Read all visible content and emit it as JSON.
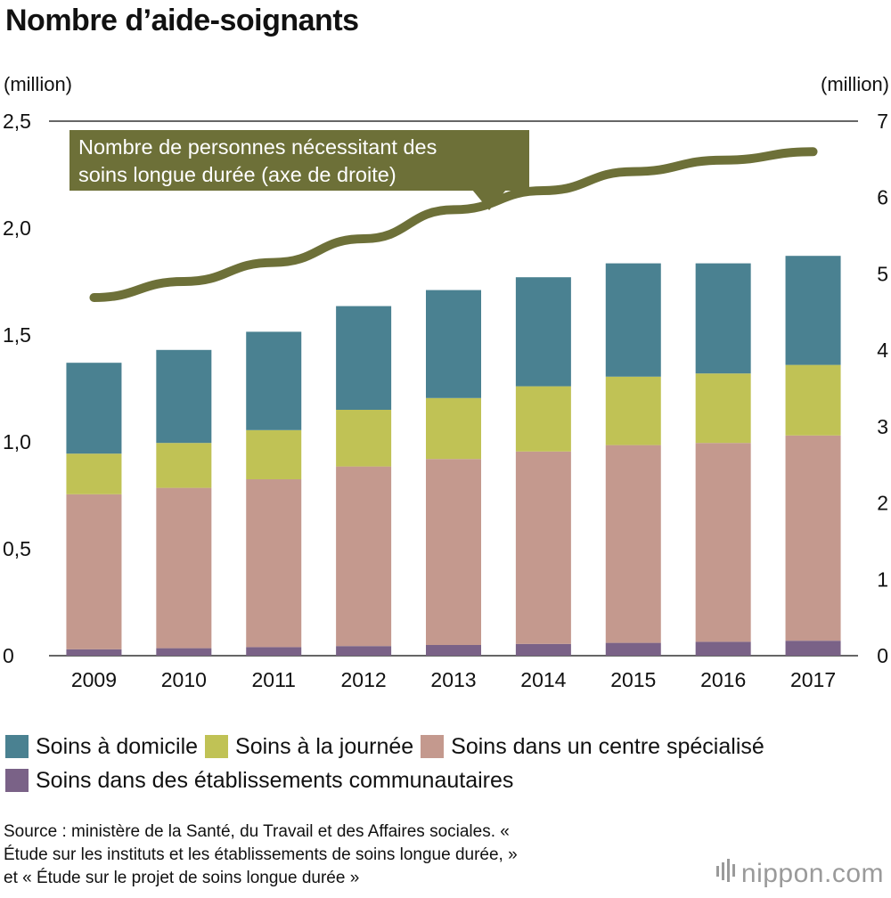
{
  "title": "Nombre d’aide-soignants",
  "left_unit": "(million)",
  "right_unit": "(million)",
  "chart_data": {
    "type": "bar",
    "stacked": true,
    "categories": [
      "2009",
      "2010",
      "2011",
      "2012",
      "2013",
      "2014",
      "2015",
      "2016",
      "2017"
    ],
    "series": [
      {
        "name": "Soins dans des établissements communautaires",
        "color": "#7a6287",
        "values": [
          0.03,
          0.035,
          0.04,
          0.045,
          0.05,
          0.055,
          0.06,
          0.065,
          0.07
        ]
      },
      {
        "name": "Soins dans un centre spécialisé",
        "color": "#c4998e",
        "values": [
          0.725,
          0.75,
          0.785,
          0.84,
          0.87,
          0.9,
          0.925,
          0.93,
          0.96
        ]
      },
      {
        "name": "Soins à la journée",
        "color": "#c0c255",
        "values": [
          0.19,
          0.21,
          0.23,
          0.265,
          0.285,
          0.305,
          0.32,
          0.325,
          0.33
        ]
      },
      {
        "name": "Soins à domicile",
        "color": "#4a8191",
        "values": [
          0.425,
          0.435,
          0.46,
          0.485,
          0.505,
          0.51,
          0.53,
          0.515,
          0.51
        ]
      }
    ],
    "line": {
      "name": "Nombre de personnes nécessitant des soins longue durée (axe de droite)",
      "color": "#6d7038",
      "axis": "right",
      "values": [
        4.69,
        4.9,
        5.15,
        5.46,
        5.84,
        6.09,
        6.34,
        6.49,
        6.6
      ]
    },
    "annotation": "Nombre de personnes nécessitant des soins longue durée (axe de droite)",
    "annotation_lines": [
      "Nombre de personnes nécessitant des",
      "soins longue durée (axe de droite)"
    ],
    "ylim": [
      0,
      2.5
    ],
    "y2lim": [
      0,
      7
    ],
    "yticks": [
      "0",
      "0,5",
      "1,0",
      "1,5",
      "2,0",
      "2,5"
    ],
    "y2ticks": [
      "0",
      "1",
      "2",
      "3",
      "4",
      "5",
      "6",
      "7"
    ],
    "xlabel": "",
    "ylabel": "(million)",
    "y2label": "(million)",
    "grid": false,
    "legend_position": "bottom"
  },
  "legend_order": [
    1,
    2,
    3,
    4
  ],
  "legend": [
    {
      "label": "Soins à domicile",
      "color": "#4a8191"
    },
    {
      "label": "Soins à la journée",
      "color": "#c0c255"
    },
    {
      "label": "Soins dans un centre spécialisé",
      "color": "#c4998e"
    },
    {
      "label": "Soins dans des établissements communautaires",
      "color": "#7a6287"
    }
  ],
  "source_lines": [
    "Source : ministère de la Santé, du Travail et des Affaires sociales. «",
    "Étude sur les instituts et les établissements de soins longue durée, »",
    "et « Étude sur le projet de soins longue durée »"
  ],
  "logo": "nippon.com"
}
